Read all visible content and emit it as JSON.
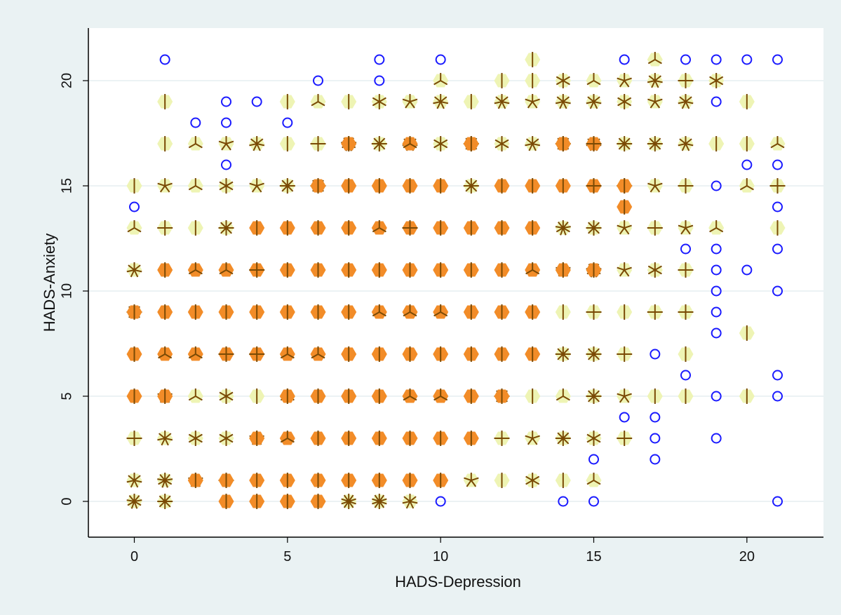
{
  "chart_data": {
    "type": "scatter",
    "subtype": "sunflower",
    "xlabel": "HADS-Depression",
    "ylabel": "HADS-Anxiety",
    "xlim": [
      -1.5,
      22.5
    ],
    "ylim": [
      -1.7,
      22.5
    ],
    "xticks": [
      "0",
      "5",
      "10",
      "15",
      "20"
    ],
    "yticks": [
      "0",
      "5",
      "10",
      "15",
      "20"
    ],
    "grid": "horizontal",
    "colors": {
      "single_point": "#1a1aff",
      "light_petal_fill": "#eef4b4",
      "dark_petal_fill": "#f28c28",
      "petal": "#7a4a05"
    },
    "points": [
      [
        1,
        21
      ],
      [
        3,
        19
      ],
      [
        3,
        18
      ],
      [
        3,
        16
      ],
      [
        4,
        19
      ],
      [
        2,
        18
      ],
      [
        5,
        18
      ],
      [
        6,
        20
      ],
      [
        8,
        21
      ],
      [
        8,
        20
      ],
      [
        10,
        21
      ],
      [
        0,
        14
      ],
      [
        16,
        21
      ],
      [
        18,
        21
      ],
      [
        19,
        21
      ],
      [
        20,
        21
      ],
      [
        21,
        21
      ],
      [
        19,
        19
      ],
      [
        19,
        17
      ],
      [
        20,
        16
      ],
      [
        21,
        16
      ],
      [
        19,
        15
      ],
      [
        21,
        14
      ],
      [
        19,
        13
      ],
      [
        18,
        12
      ],
      [
        19,
        12
      ],
      [
        21,
        12
      ],
      [
        19,
        11
      ],
      [
        20,
        11
      ],
      [
        19,
        10
      ],
      [
        21,
        10
      ],
      [
        18,
        9
      ],
      [
        19,
        9
      ],
      [
        19,
        8
      ],
      [
        17,
        7
      ],
      [
        18,
        6
      ],
      [
        21,
        6
      ],
      [
        17,
        5
      ],
      [
        19,
        5
      ],
      [
        21,
        5
      ],
      [
        16,
        4
      ],
      [
        17,
        4
      ],
      [
        17,
        3
      ],
      [
        19,
        3
      ],
      [
        15,
        2
      ],
      [
        17,
        2
      ],
      [
        10,
        0
      ],
      [
        14,
        0
      ],
      [
        15,
        0
      ],
      [
        21,
        0
      ]
    ],
    "light_sunflowers": [
      [
        1,
        19,
        2
      ],
      [
        13,
        21,
        1
      ],
      [
        17,
        21,
        3
      ],
      [
        10,
        20,
        3
      ],
      [
        12,
        20,
        2
      ],
      [
        13,
        20,
        1
      ],
      [
        14,
        20,
        6
      ],
      [
        15,
        20,
        3
      ],
      [
        16,
        20,
        5
      ],
      [
        17,
        20,
        7
      ],
      [
        18,
        20,
        4
      ],
      [
        19,
        20,
        6
      ],
      [
        5,
        19,
        1
      ],
      [
        6,
        19,
        3
      ],
      [
        7,
        19,
        2
      ],
      [
        8,
        19,
        6
      ],
      [
        9,
        19,
        5
      ],
      [
        10,
        19,
        7
      ],
      [
        11,
        19,
        1
      ],
      [
        12,
        19,
        7
      ],
      [
        13,
        19,
        5
      ],
      [
        14,
        19,
        7
      ],
      [
        15,
        19,
        7
      ],
      [
        16,
        19,
        6
      ],
      [
        17,
        19,
        5
      ],
      [
        18,
        19,
        7
      ],
      [
        20,
        19,
        1
      ],
      [
        1,
        17,
        1
      ],
      [
        2,
        17,
        3
      ],
      [
        3,
        17,
        5
      ],
      [
        4,
        17,
        7
      ],
      [
        5,
        17,
        1
      ],
      [
        6,
        17,
        4
      ],
      [
        7,
        17,
        9
      ],
      [
        8,
        17,
        8
      ],
      [
        9,
        17,
        7
      ],
      [
        10,
        17,
        6
      ],
      [
        11,
        17,
        8
      ],
      [
        12,
        17,
        6
      ],
      [
        13,
        17,
        7
      ],
      [
        14,
        17,
        8
      ],
      [
        15,
        17,
        7
      ],
      [
        16,
        17,
        8
      ],
      [
        17,
        17,
        8
      ],
      [
        18,
        17,
        7
      ],
      [
        19,
        17,
        1
      ],
      [
        20,
        17,
        1
      ],
      [
        21,
        17,
        3
      ],
      [
        0,
        15,
        1
      ],
      [
        1,
        15,
        5
      ],
      [
        2,
        15,
        3
      ],
      [
        3,
        15,
        6
      ],
      [
        4,
        15,
        5
      ],
      [
        5,
        15,
        8
      ],
      [
        6,
        15,
        8
      ],
      [
        11,
        15,
        8
      ],
      [
        16,
        15,
        4
      ],
      [
        17,
        15,
        5
      ],
      [
        18,
        15,
        4
      ],
      [
        20,
        15,
        3
      ],
      [
        21,
        15,
        4
      ],
      [
        0,
        13,
        3
      ],
      [
        1,
        13,
        4
      ],
      [
        2,
        13,
        1
      ],
      [
        3,
        13,
        8
      ],
      [
        14,
        13,
        9
      ],
      [
        15,
        13,
        8
      ],
      [
        16,
        13,
        5
      ],
      [
        17,
        13,
        4
      ],
      [
        18,
        13,
        5
      ],
      [
        19,
        13,
        3
      ],
      [
        21,
        13,
        1
      ],
      [
        0,
        11,
        7
      ],
      [
        14,
        11,
        5
      ],
      [
        15,
        11,
        9
      ],
      [
        16,
        11,
        5
      ],
      [
        17,
        11,
        6
      ],
      [
        18,
        11,
        4
      ],
      [
        0,
        9,
        8
      ],
      [
        14,
        9,
        2
      ],
      [
        15,
        9,
        4
      ],
      [
        16,
        9,
        2
      ],
      [
        17,
        9,
        4
      ],
      [
        18,
        9,
        4
      ],
      [
        20,
        8,
        1
      ],
      [
        14,
        7,
        8
      ],
      [
        15,
        7,
        8
      ],
      [
        16,
        7,
        4
      ],
      [
        18,
        7,
        1
      ],
      [
        1,
        5,
        5
      ],
      [
        2,
        5,
        3
      ],
      [
        3,
        5,
        6
      ],
      [
        4,
        5,
        2
      ],
      [
        5,
        5,
        3
      ],
      [
        12,
        5,
        8
      ],
      [
        13,
        5,
        1
      ],
      [
        14,
        5,
        3
      ],
      [
        15,
        5,
        8
      ],
      [
        16,
        5,
        5
      ],
      [
        17,
        5,
        1
      ],
      [
        18,
        5,
        1
      ],
      [
        20,
        5,
        1
      ],
      [
        0,
        3,
        4
      ],
      [
        1,
        3,
        7
      ],
      [
        2,
        3,
        6
      ],
      [
        3,
        3,
        6
      ],
      [
        4,
        3,
        5
      ],
      [
        12,
        3,
        4
      ],
      [
        13,
        3,
        5
      ],
      [
        14,
        3,
        8
      ],
      [
        15,
        3,
        6
      ],
      [
        16,
        3,
        4
      ],
      [
        0,
        1,
        7
      ],
      [
        1,
        1,
        9
      ],
      [
        2,
        1,
        5
      ],
      [
        3,
        1,
        4
      ],
      [
        11,
        1,
        5
      ],
      [
        12,
        1,
        2
      ],
      [
        13,
        1,
        6
      ],
      [
        14,
        1,
        1
      ],
      [
        15,
        1,
        3
      ],
      [
        0,
        0,
        9
      ],
      [
        1,
        0,
        8
      ],
      [
        7,
        0,
        10
      ],
      [
        8,
        0,
        10
      ],
      [
        9,
        0,
        7
      ]
    ],
    "dark_sunflowers": [
      [
        7,
        17,
        2
      ],
      [
        9,
        17,
        3
      ],
      [
        11,
        17,
        1
      ],
      [
        14,
        17,
        1
      ],
      [
        15,
        17,
        4
      ],
      [
        6,
        15,
        2
      ],
      [
        7,
        15,
        2
      ],
      [
        8,
        15,
        2
      ],
      [
        9,
        15,
        2
      ],
      [
        10,
        15,
        2
      ],
      [
        12,
        15,
        2
      ],
      [
        13,
        15,
        2
      ],
      [
        14,
        15,
        2
      ],
      [
        15,
        15,
        4
      ],
      [
        16,
        15,
        2
      ],
      [
        4,
        13,
        1
      ],
      [
        5,
        13,
        1
      ],
      [
        6,
        13,
        2
      ],
      [
        7,
        13,
        2
      ],
      [
        8,
        13,
        3
      ],
      [
        9,
        13,
        4
      ],
      [
        10,
        13,
        2
      ],
      [
        11,
        13,
        2
      ],
      [
        12,
        13,
        2
      ],
      [
        13,
        13,
        2
      ],
      [
        16,
        14,
        1
      ],
      [
        1,
        11,
        2
      ],
      [
        2,
        11,
        3
      ],
      [
        3,
        11,
        3
      ],
      [
        4,
        11,
        4
      ],
      [
        5,
        11,
        2
      ],
      [
        6,
        11,
        2
      ],
      [
        7,
        11,
        2
      ],
      [
        8,
        11,
        2
      ],
      [
        9,
        11,
        1
      ],
      [
        10,
        11,
        2
      ],
      [
        11,
        11,
        2
      ],
      [
        12,
        11,
        2
      ],
      [
        13,
        11,
        3
      ],
      [
        14,
        11,
        2
      ],
      [
        15,
        11,
        2
      ],
      [
        0,
        9,
        2
      ],
      [
        1,
        9,
        2
      ],
      [
        2,
        9,
        2
      ],
      [
        3,
        9,
        2
      ],
      [
        4,
        9,
        2
      ],
      [
        5,
        9,
        1
      ],
      [
        6,
        9,
        2
      ],
      [
        7,
        9,
        2
      ],
      [
        8,
        9,
        3
      ],
      [
        9,
        9,
        3
      ],
      [
        10,
        9,
        3
      ],
      [
        11,
        9,
        2
      ],
      [
        12,
        9,
        2
      ],
      [
        13,
        9,
        2
      ],
      [
        0,
        7,
        2
      ],
      [
        1,
        7,
        3
      ],
      [
        2,
        7,
        3
      ],
      [
        3,
        7,
        4
      ],
      [
        4,
        7,
        4
      ],
      [
        5,
        7,
        3
      ],
      [
        6,
        7,
        3
      ],
      [
        7,
        7,
        2
      ],
      [
        8,
        7,
        1
      ],
      [
        9,
        7,
        1
      ],
      [
        10,
        7,
        1
      ],
      [
        11,
        7,
        1
      ],
      [
        12,
        7,
        2
      ],
      [
        13,
        7,
        2
      ],
      [
        0,
        5,
        2
      ],
      [
        1,
        5,
        1
      ],
      [
        5,
        5,
        1
      ],
      [
        6,
        5,
        1
      ],
      [
        7,
        5,
        2
      ],
      [
        8,
        5,
        2
      ],
      [
        9,
        5,
        3
      ],
      [
        10,
        5,
        3
      ],
      [
        11,
        5,
        2
      ],
      [
        12,
        5,
        2
      ],
      [
        4,
        3,
        2
      ],
      [
        5,
        3,
        3
      ],
      [
        6,
        3,
        2
      ],
      [
        7,
        3,
        2
      ],
      [
        8,
        3,
        1
      ],
      [
        9,
        3,
        1
      ],
      [
        10,
        3,
        1
      ],
      [
        11,
        3,
        1
      ],
      [
        2,
        1,
        1
      ],
      [
        3,
        1,
        1
      ],
      [
        4,
        1,
        1
      ],
      [
        5,
        1,
        1
      ],
      [
        6,
        1,
        1
      ],
      [
        7,
        1,
        1
      ],
      [
        8,
        1,
        2
      ],
      [
        9,
        1,
        2
      ],
      [
        10,
        1,
        2
      ],
      [
        3,
        0,
        1
      ],
      [
        4,
        0,
        1
      ],
      [
        5,
        0,
        1
      ],
      [
        6,
        0,
        1
      ]
    ]
  }
}
